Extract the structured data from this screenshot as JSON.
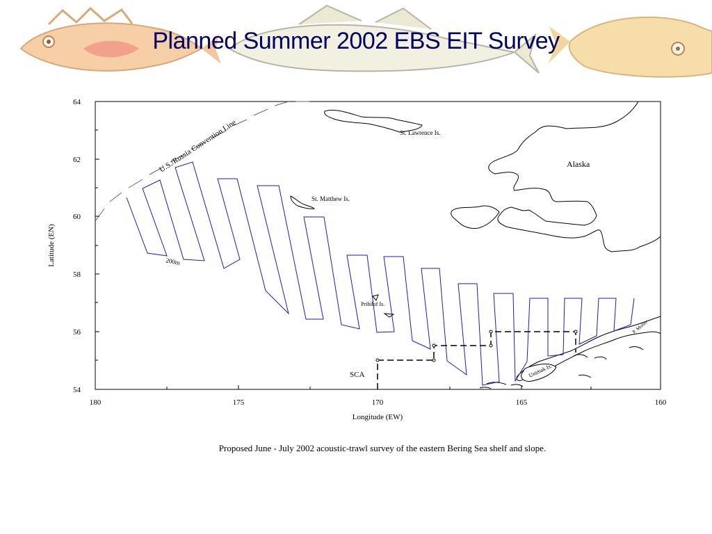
{
  "slide": {
    "title": "Planned Summer 2002 EBS EIT Survey",
    "caption": "Proposed June - July 2002 acoustic-trawl survey of the eastern Bering Sea shelf and slope."
  },
  "map": {
    "x_label": "Longitude (EW)",
    "y_label": "Latitude (EN)",
    "x_ticks": [
      "180",
      "175",
      "170",
      "165",
      "160"
    ],
    "y_ticks": [
      "54",
      "56",
      "58",
      "60",
      "62",
      "64"
    ],
    "x_range_deg": [
      180,
      160
    ],
    "y_range_deg": [
      54,
      64
    ],
    "labels": {
      "convention_line": "U.S./Russia Convention Line",
      "alaska": "Alaska",
      "st_lawrence": "St. Lawrence Is.",
      "st_matthew": "St. Matthew Is.",
      "pribilof": "Pribilof Is.",
      "unimak": "Unimak Is.",
      "p_moller": "P. Moller",
      "depth_200m": "200m",
      "sca": "SCA"
    },
    "colors": {
      "transect": "#1a1acc",
      "land": "#000000",
      "sca_boundary": "#000000",
      "title": "#000066"
    }
  }
}
